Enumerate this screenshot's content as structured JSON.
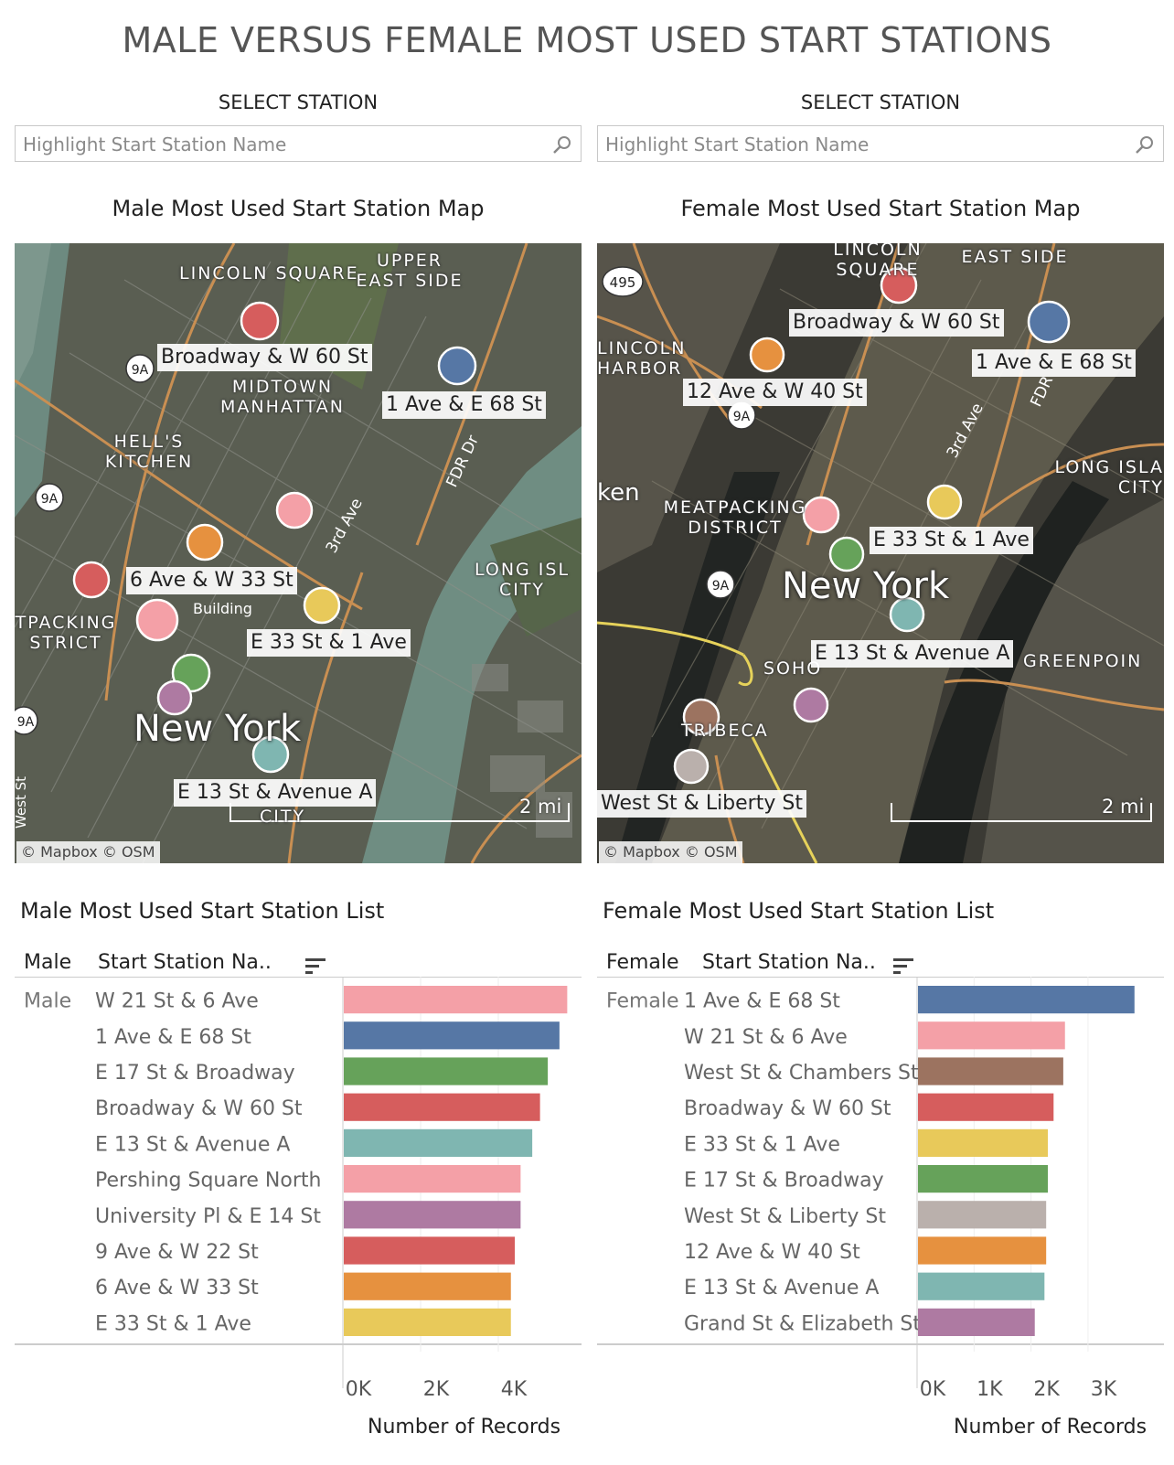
{
  "title": "MALE VERSUS FEMALE MOST USED START STATIONS",
  "panels": {
    "male": {
      "select_label": "SELECT STATION",
      "search_placeholder": "Highlight Start Station Name",
      "map_title": "Male Most Used Start Station Map",
      "list_title": "Male Most Used Start Station List",
      "col_group": "Male",
      "col_station": "Start Station Na..",
      "axis_title": "Number of Records",
      "map": {
        "places": [
          "LINCOLN SQUARE",
          "UPPER EAST SIDE",
          "MIDTOWN MANHATTAN",
          "HELL'S KITCHEN",
          "LONG ISL CITY",
          "TPACKING STRICT",
          "CITY"
        ],
        "roads": [
          "3rd Ave",
          "FDR Dr",
          "West St",
          "Building"
        ],
        "shields": [
          "9A",
          "9A",
          "9A"
        ],
        "city": "New York",
        "labels": [
          "Broadway & W 60 St",
          "1 Ave & E 68 St",
          "6 Ave & W 33 St",
          "E 33 St & 1 Ave",
          "E 13 St & Avenue A"
        ],
        "attribution": "© Mapbox  © OSM",
        "scale": "2 mi"
      }
    },
    "female": {
      "select_label": "SELECT STATION",
      "search_placeholder": "Highlight Start Station Name",
      "map_title": "Female Most Used Start Station Map",
      "list_title": "Female Most Used Start Station List",
      "col_group": "Female",
      "col_station": "Start Station Na..",
      "axis_title": "Number of Records",
      "map": {
        "places": [
          "LINCOLN SQUARE",
          "EAST SIDE",
          "LINCOLN HARBOR",
          "MEATPACKING DISTRICT",
          "LONG ISLA CITY",
          "SOHO",
          "TRIBECA",
          "GREENPOIN",
          "ken"
        ],
        "roads": [
          "3rd Ave",
          "FDR"
        ],
        "shields": [
          "495",
          "9A",
          "9A"
        ],
        "city": "New York",
        "labels": [
          "Broadway & W 60 St",
          "1 Ave & E 68 St",
          "12 Ave & W 40 St",
          "E 33 St & 1 Ave",
          "E 13 St & Avenue A",
          "West St & Liberty St"
        ],
        "attribution": "© Mapbox  © OSM",
        "scale": "2 mi"
      }
    }
  },
  "chart_data": [
    {
      "type": "bar",
      "orientation": "horizontal",
      "group": "Male",
      "categories": [
        "W 21 St & 6 Ave",
        "1 Ave & E 68 St",
        "E 17 St & Broadway",
        "Broadway & W 60 St",
        "E 13 St & Avenue A",
        "Pershing Square North",
        "University Pl & E 14 St",
        "9 Ave & W 22 St",
        "6 Ave & W 33 St",
        "E 33 St & 1 Ave"
      ],
      "values": [
        5750,
        5550,
        5250,
        5050,
        4850,
        4550,
        4550,
        4400,
        4300,
        4300
      ],
      "colors": [
        "#f4a0a7",
        "#5677a5",
        "#66a25a",
        "#d65d5d",
        "#7fb6b1",
        "#f4a0a7",
        "#ae7aa2",
        "#d65d5d",
        "#e6913f",
        "#e8c95a"
      ],
      "ticks": [
        0,
        2000,
        4000
      ],
      "tick_labels": [
        "0K",
        "2K",
        "4K"
      ],
      "xlim": [
        0,
        6000
      ],
      "xlabel": "Number of Records"
    },
    {
      "type": "bar",
      "orientation": "horizontal",
      "group": "Female",
      "categories": [
        "1 Ave & E 68 St",
        "W 21 St & 6 Ave",
        "West St & Chambers St",
        "Broadway & W 60 St",
        "E 33 St & 1 Ave",
        "E 17 St & Broadway",
        "West St & Liberty St",
        "12 Ave & W 40 St",
        "E 13 St & Avenue A",
        "Grand St & Elizabeth St"
      ],
      "values": [
        3800,
        2580,
        2550,
        2380,
        2280,
        2280,
        2250,
        2250,
        2220,
        2050
      ],
      "colors": [
        "#5677a5",
        "#f4a0a7",
        "#9c7360",
        "#d65d5d",
        "#e8c95a",
        "#66a25a",
        "#bab0ac",
        "#e6913f",
        "#7fb6b1",
        "#ae7aa2"
      ],
      "ticks": [
        0,
        1000,
        2000,
        3000
      ],
      "tick_labels": [
        "0K",
        "1K",
        "2K",
        "3K"
      ],
      "xlim": [
        0,
        3900
      ],
      "xlabel": "Number of Records"
    }
  ]
}
